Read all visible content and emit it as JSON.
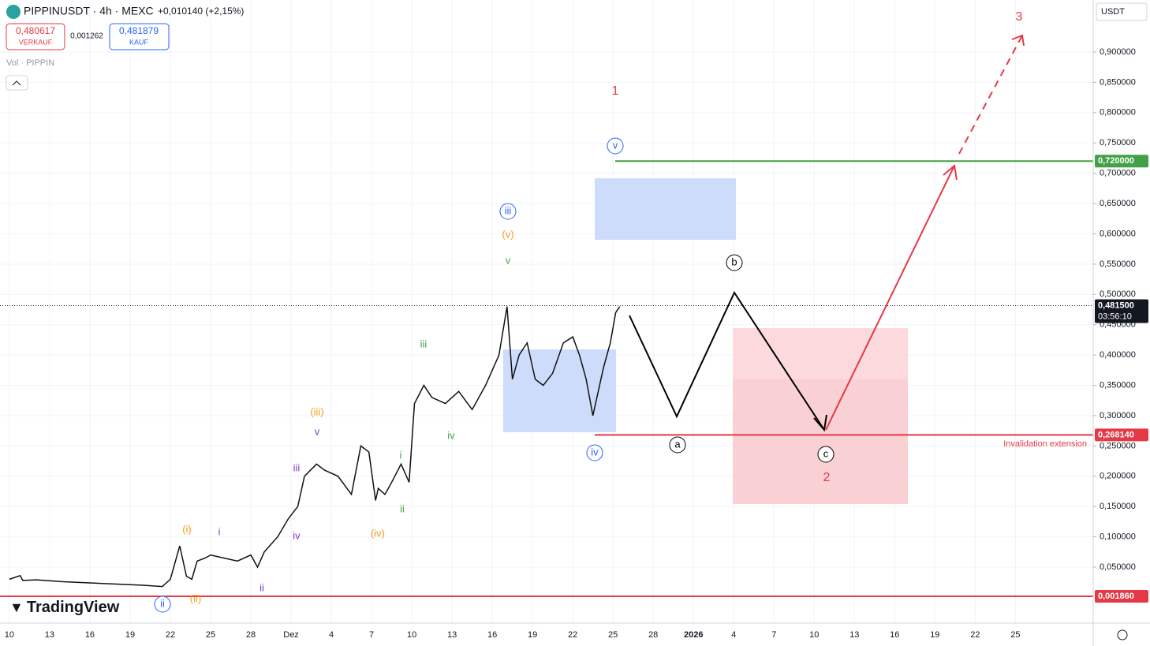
{
  "chart_data": {
    "type": "line",
    "title": "PIPPINUSDT · 4h · MEXC",
    "change": "+0,010140 (+2,15%)",
    "sell_price": "0,480617",
    "sell_label": "VERKAUF",
    "spread": "0,001262",
    "buy_price": "0,481879",
    "buy_label": "KAUF",
    "volume_label": "Vol · PIPPIN",
    "currency": "USDT",
    "brand": "TradingView",
    "countdown": "03:56:10",
    "annotation": "Invalidation extension",
    "waves": [
      "1",
      "v",
      "iii",
      "(v)",
      "v",
      "iii",
      "(iii)",
      "v",
      "iv",
      "i",
      "iii",
      "ii",
      "(iv)",
      "(i)",
      "i",
      "iv",
      "ii",
      "(ii)",
      "ii",
      "iv",
      "b",
      "a",
      "c",
      "2",
      "3"
    ],
    "xlim": [
      -0.7,
      80.8
    ],
    "ylim": [
      -0.0424,
      0.9859
    ],
    "xticks": [
      {
        "value": 0,
        "label": "10"
      },
      {
        "value": 3,
        "label": "13"
      },
      {
        "value": 6,
        "label": "16"
      },
      {
        "value": 9,
        "label": "19"
      },
      {
        "value": 12,
        "label": "22"
      },
      {
        "value": 15,
        "label": "25"
      },
      {
        "value": 18,
        "label": "28"
      },
      {
        "value": 21,
        "label": "Dez"
      },
      {
        "value": 24,
        "label": "4"
      },
      {
        "value": 27,
        "label": "7"
      },
      {
        "value": 30,
        "label": "10"
      },
      {
        "value": 33,
        "label": "13"
      },
      {
        "value": 36,
        "label": "16"
      },
      {
        "value": 39,
        "label": "19"
      },
      {
        "value": 42,
        "label": "22"
      },
      {
        "value": 45,
        "label": "25"
      },
      {
        "value": 48,
        "label": "28"
      },
      {
        "value": 51,
        "label": "2026"
      },
      {
        "value": 54,
        "label": "4"
      },
      {
        "value": 57,
        "label": "7"
      },
      {
        "value": 60,
        "label": "10"
      },
      {
        "value": 63,
        "label": "13"
      },
      {
        "value": 66,
        "label": "16"
      },
      {
        "value": 69,
        "label": "19"
      },
      {
        "value": 72,
        "label": "22"
      },
      {
        "value": 75,
        "label": "25"
      }
    ],
    "yticks": [
      {
        "value": 0.05,
        "label": "0,050000"
      },
      {
        "value": 0.1,
        "label": "0,100000"
      },
      {
        "value": 0.15,
        "label": "0,150000"
      },
      {
        "value": 0.2,
        "label": "0,200000"
      },
      {
        "value": 0.25,
        "label": "0,250000"
      },
      {
        "value": 0.3,
        "label": "0,300000"
      },
      {
        "value": 0.35,
        "label": "0,350000"
      },
      {
        "value": 0.4,
        "label": "0,400000"
      },
      {
        "value": 0.45,
        "label": "0,450000"
      },
      {
        "value": 0.5,
        "label": "0,500000"
      },
      {
        "value": 0.55,
        "label": "0,550000"
      },
      {
        "value": 0.6,
        "label": "0,600000"
      },
      {
        "value": 0.65,
        "label": "0,650000"
      },
      {
        "value": 0.7,
        "label": "0,700000"
      },
      {
        "value": 0.75,
        "label": "0,750000"
      },
      {
        "value": 0.8,
        "label": "0,800000"
      },
      {
        "value": 0.85,
        "label": "0,850000"
      },
      {
        "value": 0.9,
        "label": "0,900000"
      }
    ],
    "levels": [
      {
        "value": 0.72,
        "label": "0,720000",
        "color": "#43a047"
      },
      {
        "value": 0.26814,
        "label": "0,268140",
        "color": "#e53945"
      },
      {
        "value": 0.00186,
        "label": "0,001860",
        "color": "#e53945"
      }
    ],
    "last_price": {
      "value": 0.4815,
      "label": "0,481500"
    },
    "series": [
      {
        "name": "PIPPINUSDT",
        "color": "#111111",
        "x": [
          0,
          0.8,
          1,
          2,
          4,
          6,
          8,
          10,
          11.4,
          12,
          12.7,
          13.2,
          13.6,
          14,
          14.6,
          15,
          16,
          17,
          18,
          18.5,
          19,
          20,
          20.8,
          21.5,
          22,
          22.9,
          23.5,
          24.5,
          25.5,
          26.2,
          26.8,
          27.3,
          27.5,
          28,
          28.5,
          29.2,
          29.8,
          30.2,
          30.9,
          31.5,
          32.5,
          33.5,
          34.5,
          35.5,
          36.5,
          37.1,
          37.5,
          38,
          38.6,
          39.2,
          39.8,
          40.5,
          41.3,
          42,
          42.5,
          43,
          43.5,
          44.3,
          44.8,
          45.2,
          45.5
        ],
        "values": [
          0.03,
          0.036,
          0.028,
          0.029,
          0.026,
          0.024,
          0.022,
          0.02,
          0.018,
          0.03,
          0.085,
          0.035,
          0.03,
          0.06,
          0.065,
          0.07,
          0.065,
          0.06,
          0.07,
          0.05,
          0.075,
          0.1,
          0.13,
          0.15,
          0.2,
          0.22,
          0.21,
          0.2,
          0.17,
          0.25,
          0.24,
          0.16,
          0.18,
          0.17,
          0.19,
          0.22,
          0.19,
          0.32,
          0.35,
          0.33,
          0.32,
          0.34,
          0.31,
          0.35,
          0.4,
          0.48,
          0.36,
          0.4,
          0.42,
          0.36,
          0.35,
          0.37,
          0.42,
          0.43,
          0.4,
          0.36,
          0.3,
          0.38,
          0.42,
          0.47,
          0.48
        ]
      }
    ]
  }
}
